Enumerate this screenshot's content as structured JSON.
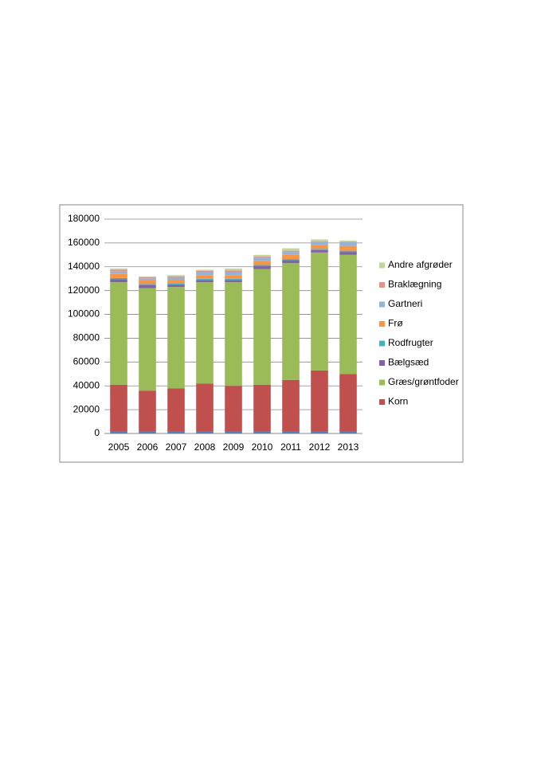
{
  "chart_data": {
    "type": "stacked-bar",
    "categories": [
      "2005",
      "2006",
      "2007",
      "2008",
      "2009",
      "2010",
      "2011",
      "2012",
      "2013"
    ],
    "series": [
      {
        "color": "#4f81bd",
        "values": [
          2000,
          2000,
          2000,
          2000,
          2000,
          2000,
          2000,
          2000,
          2000
        ]
      },
      {
        "name": "Korn",
        "color": "#c0504d",
        "values": [
          39000,
          34000,
          36000,
          40000,
          38000,
          39000,
          43000,
          51000,
          48000
        ]
      },
      {
        "name": "Græs/grøntfoder",
        "color": "#9bbb59",
        "values": [
          86000,
          86000,
          85000,
          85000,
          87000,
          97000,
          98000,
          99000,
          100000
        ]
      },
      {
        "name": "Bælgsæd",
        "color": "#8064a2",
        "values": [
          2500,
          2500,
          2000,
          2000,
          2000,
          2500,
          2500,
          2000,
          2500
        ]
      },
      {
        "name": "Rodfrugter",
        "color": "#4bacc6",
        "values": [
          1000,
          1000,
          800,
          1000,
          1000,
          1000,
          1000,
          1000,
          1000
        ]
      },
      {
        "name": "Frø",
        "color": "#f79646",
        "values": [
          3500,
          3000,
          3000,
          3000,
          3000,
          3500,
          3500,
          3500,
          4000
        ]
      },
      {
        "name": "Gartneri",
        "color": "#95b3d7",
        "values": [
          2000,
          1500,
          2000,
          2500,
          2500,
          2500,
          2500,
          2500,
          3500
        ]
      },
      {
        "name": "Braklægning",
        "color": "#d99694",
        "values": [
          1500,
          1200,
          1200,
          1000,
          1500,
          1000,
          1000,
          500,
          0
        ]
      },
      {
        "name": "Andre afgrøder",
        "color": "#c3d69b",
        "values": [
          1000,
          800,
          1000,
          1000,
          1500,
          1500,
          2000,
          1500,
          1000
        ]
      }
    ],
    "ylim": [
      0,
      180000
    ],
    "yticks": [
      0,
      20000,
      40000,
      60000,
      80000,
      100000,
      120000,
      140000,
      160000,
      180000
    ],
    "grid": true,
    "legend": "right"
  }
}
